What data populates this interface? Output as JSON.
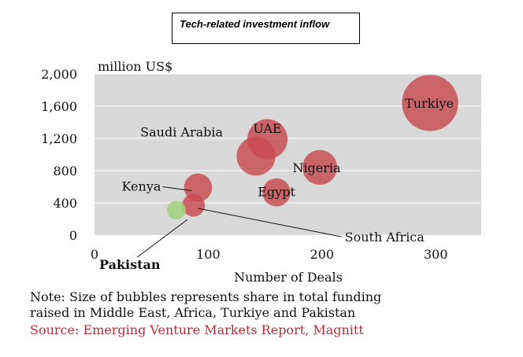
{
  "header": {
    "title": "Tech-related investment inflow"
  },
  "chart_data": {
    "type": "scatter",
    "ylabel": "million US$",
    "xlabel": "Number of Deals",
    "xlim": [
      0,
      340
    ],
    "ylim": [
      0,
      2000
    ],
    "x_ticks": [
      "0",
      "100",
      "200",
      "300"
    ],
    "y_ticks": [
      "0",
      "400",
      "800",
      "1,200",
      "1,600",
      "2,000"
    ],
    "grid": true,
    "points": [
      {
        "label": "Turkiye",
        "x": 295,
        "y": 1640,
        "size": 42,
        "color": "#c84a4f"
      },
      {
        "label": "UAE",
        "x": 152,
        "y": 1190,
        "size": 30,
        "color": "#c84a4f"
      },
      {
        "label": "Saudi Arabia",
        "x": 142,
        "y": 980,
        "size": 29,
        "color": "#c84a4f"
      },
      {
        "label": "Nigeria",
        "x": 198,
        "y": 840,
        "size": 26,
        "color": "#c84a4f"
      },
      {
        "label": "Egypt",
        "x": 160,
        "y": 530,
        "size": 21,
        "color": "#c84a4f"
      },
      {
        "label": "Kenya",
        "x": 91,
        "y": 590,
        "size": 21,
        "color": "#c84a4f"
      },
      {
        "label": "South Africa",
        "x": 87,
        "y": 370,
        "size": 17,
        "color": "#c84a4f"
      },
      {
        "label": "Pakistan",
        "x": 72,
        "y": 310,
        "size": 14,
        "color": "#9fd27a"
      }
    ]
  },
  "note": {
    "line1": "Note: Size of bubbles represents share in total funding",
    "line2": "raised in Middle East, Africa, Turkiye and Pakistan"
  },
  "source": "Source: Emerging Venture Markets Report, Magnitt"
}
